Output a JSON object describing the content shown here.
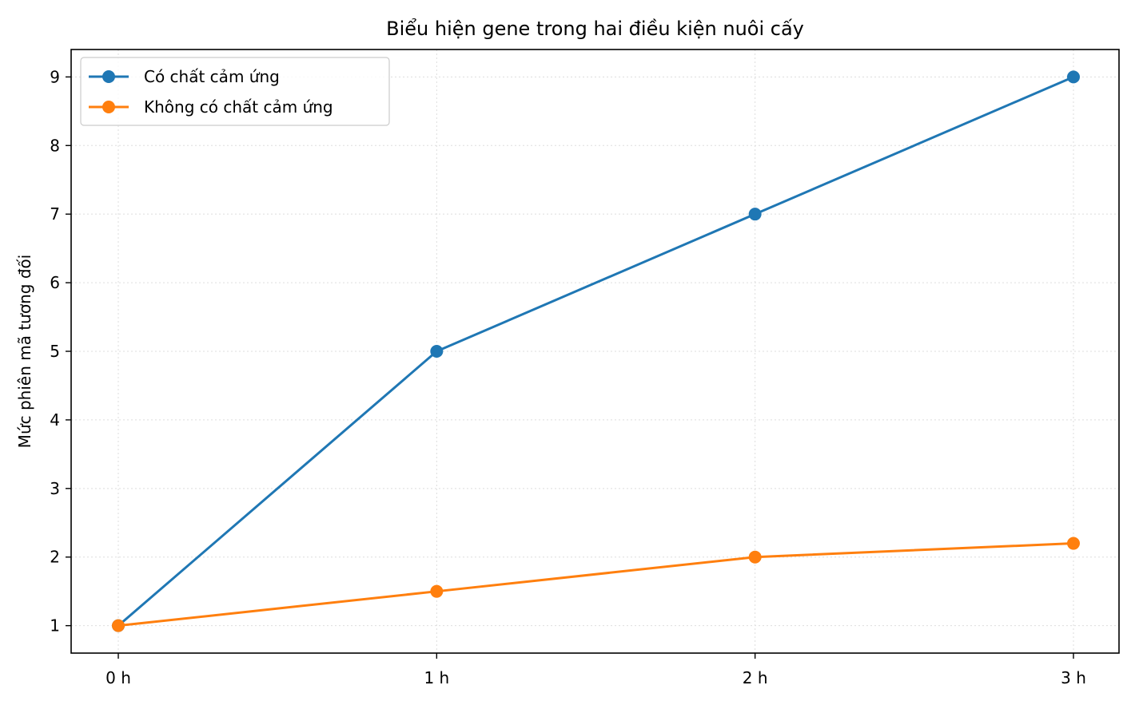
{
  "chart_data": {
    "type": "line",
    "title": "Biểu hiện gene trong hai điều kiện nuôi cấy",
    "xlabel": "",
    "ylabel": "Mức phiên mã tương đối",
    "categories": [
      "0 h",
      "1 h",
      "2 h",
      "3 h"
    ],
    "yticks": [
      "1",
      "2",
      "3",
      "4",
      "5",
      "6",
      "7",
      "8",
      "9"
    ],
    "ylim": [
      0.6,
      9.4
    ],
    "grid": true,
    "legend_position": "top-left",
    "series": [
      {
        "name": "Có chất cảm ứng",
        "color": "#1f77b4",
        "values": [
          1,
          5,
          7,
          9
        ]
      },
      {
        "name": "Không có chất cảm ứng",
        "color": "#ff7f0e",
        "values": [
          1,
          1.5,
          2,
          2.2
        ]
      }
    ]
  }
}
